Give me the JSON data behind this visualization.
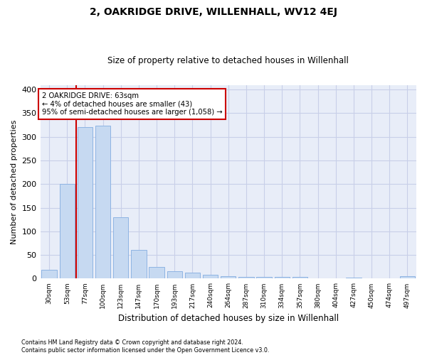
{
  "title": "2, OAKRIDGE DRIVE, WILLENHALL, WV12 4EJ",
  "subtitle": "Size of property relative to detached houses in Willenhall",
  "xlabel": "Distribution of detached houses by size in Willenhall",
  "ylabel": "Number of detached properties",
  "footer_line1": "Contains HM Land Registry data © Crown copyright and database right 2024.",
  "footer_line2": "Contains public sector information licensed under the Open Government Licence v3.0.",
  "categories": [
    "30sqm",
    "53sqm",
    "77sqm",
    "100sqm",
    "123sqm",
    "147sqm",
    "170sqm",
    "193sqm",
    "217sqm",
    "240sqm",
    "264sqm",
    "287sqm",
    "310sqm",
    "334sqm",
    "357sqm",
    "380sqm",
    "404sqm",
    "427sqm",
    "450sqm",
    "474sqm",
    "497sqm"
  ],
  "values": [
    18,
    200,
    320,
    323,
    130,
    60,
    25,
    15,
    13,
    8,
    5,
    4,
    4,
    4,
    3,
    1,
    0,
    2,
    1,
    1,
    5
  ],
  "bar_color": "#c6d9f1",
  "bar_edge_color": "#8eb4e3",
  "grid_color": "#c8cfe8",
  "background_color": "#e8edf8",
  "red_line_x": 1.5,
  "annotation_text_line1": "2 OAKRIDGE DRIVE: 63sqm",
  "annotation_text_line2": "← 4% of detached houses are smaller (43)",
  "annotation_text_line3": "95% of semi-detached houses are larger (1,058) →",
  "annotation_box_color": "#cc0000",
  "ylim": [
    0,
    410
  ],
  "yticks": [
    0,
    50,
    100,
    150,
    200,
    250,
    300,
    350,
    400
  ]
}
